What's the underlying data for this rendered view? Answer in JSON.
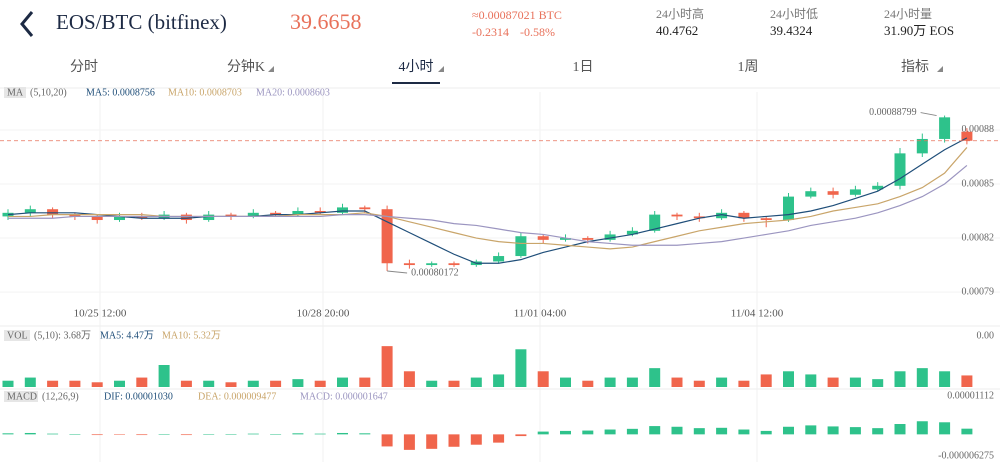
{
  "header": {
    "pair": "EOS/BTC (bitfinex)",
    "price": "39.6658",
    "btc_price": "≈0.00087021 BTC",
    "change": "-0.2314",
    "change_pct": "-0.58%",
    "stats": [
      {
        "label": "24小时高",
        "value": "40.4762"
      },
      {
        "label": "24小时低",
        "value": "39.4324"
      },
      {
        "label": "24小时量",
        "value": "31.90万 EOS"
      }
    ]
  },
  "tabs": [
    "分时",
    "分钟K",
    "4小时",
    "1日",
    "1周",
    "指标"
  ],
  "chart_data": {
    "type": "candlestick",
    "legend": {
      "name": "MA",
      "params": "(5,10,20)",
      "items": [
        "MA5: 0.0008756",
        "MA10: 0.0008703",
        "MA20: 0.0008603"
      ]
    },
    "x_labels": [
      "10/25 12:00",
      "10/28 20:00",
      "11/01 04:00",
      "11/04 12:00"
    ],
    "ylim": [
      0.0007856,
      0.0008994
    ],
    "yticks": [
      0.00088,
      0.00085,
      0.00082,
      0.00079
    ],
    "annotations": {
      "high": "0.00088799",
      "low": "0.00080172"
    },
    "up_color": "#2ec28b",
    "down_color": "#f0654c",
    "candles": {
      "open": [
        0.000832,
        0.000834,
        0.000836,
        0.000833,
        0.000832,
        0.00083,
        0.000832,
        0.000831,
        0.000833,
        0.00083,
        0.000833,
        0.000832,
        0.000834,
        0.000833,
        0.000835,
        0.000834,
        0.000837,
        0.000836,
        0.000806,
        0.000805,
        0.000806,
        0.000805,
        0.000807,
        0.00081,
        0.000821,
        0.000819,
        0.00082,
        0.000819,
        0.000822,
        0.000824,
        0.000833,
        0.000832,
        0.000831,
        0.000834,
        0.000831,
        0.00083,
        0.000843,
        0.000846,
        0.000844,
        0.000847,
        0.000849,
        0.000867,
        0.000875,
        0.000879
      ],
      "high": [
        0.000836,
        0.000838,
        0.000837,
        0.000834,
        0.000833,
        0.000834,
        0.000834,
        0.000835,
        0.000834,
        0.000835,
        0.000834,
        0.000836,
        0.000835,
        0.000837,
        0.000837,
        0.000839,
        0.000838,
        0.000838,
        0.000808,
        0.000807,
        0.000807,
        0.000808,
        0.000812,
        0.000823,
        0.000822,
        0.000822,
        0.000821,
        0.000824,
        0.000826,
        0.000835,
        0.000834,
        0.000834,
        0.000836,
        0.000835,
        0.000832,
        0.000845,
        0.000848,
        0.000848,
        0.000849,
        0.000851,
        0.00087,
        0.000878,
        0.00088799,
        0.000881
      ],
      "low": [
        0.00083,
        0.000832,
        0.000831,
        0.00083,
        0.000828,
        0.000829,
        0.00083,
        0.00083,
        0.000828,
        0.000829,
        0.00083,
        0.000831,
        0.000832,
        0.000832,
        0.000833,
        0.000833,
        0.000834,
        0.00080172,
        0.000803,
        0.000804,
        0.000804,
        0.000804,
        0.000806,
        0.000809,
        0.000817,
        0.000818,
        0.000817,
        0.000818,
        0.000821,
        0.000823,
        0.00083,
        0.000829,
        0.00083,
        0.000829,
        0.000826,
        0.000829,
        0.000842,
        0.000842,
        0.000843,
        0.000846,
        0.000847,
        0.000865,
        0.000873,
        0.000872
      ],
      "close": [
        0.000834,
        0.000836,
        0.000833,
        0.000832,
        0.00083,
        0.000832,
        0.000831,
        0.000833,
        0.00083,
        0.000833,
        0.000832,
        0.000834,
        0.000833,
        0.000835,
        0.000834,
        0.000837,
        0.000836,
        0.000806,
        0.000805,
        0.000806,
        0.000805,
        0.000807,
        0.00081,
        0.000821,
        0.000819,
        0.00082,
        0.000819,
        0.000822,
        0.000824,
        0.000833,
        0.000832,
        0.000831,
        0.000834,
        0.000831,
        0.00083,
        0.000843,
        0.000846,
        0.000844,
        0.000847,
        0.000849,
        0.000867,
        0.000875,
        0.000887,
        0.000874
      ]
    },
    "ma_series": [
      {
        "color": "#1f4e79",
        "values": [
          0.000833,
          0.000834,
          0.000834,
          0.000834,
          0.000833,
          0.000832,
          0.000831,
          0.000831,
          0.000831,
          0.000832,
          0.000832,
          0.000832,
          0.000833,
          0.000833,
          0.000834,
          0.000835,
          0.000835,
          0.000829,
          0.000823,
          0.000817,
          0.000811,
          0.000806,
          0.000806,
          0.000808,
          0.000812,
          0.000815,
          0.000818,
          0.00082,
          0.000822,
          0.000825,
          0.000828,
          0.000831,
          0.000833,
          0.000831,
          0.000832,
          0.000833,
          0.000835,
          0.000838,
          0.000842,
          0.000846,
          0.000853,
          0.000861,
          0.000869,
          0.0008756
        ]
      },
      {
        "color": "#c9a56a",
        "values": [
          0.000832,
          0.000832,
          0.000833,
          0.000833,
          0.000833,
          0.000833,
          0.000833,
          0.000832,
          0.000832,
          0.000832,
          0.000832,
          0.000832,
          0.000832,
          0.000833,
          0.000833,
          0.000833,
          0.000834,
          0.000832,
          0.000829,
          0.000826,
          0.000823,
          0.00082,
          0.000818,
          0.000817,
          0.000817,
          0.000816,
          0.000815,
          0.000814,
          0.000815,
          0.000818,
          0.000821,
          0.000824,
          0.000826,
          0.000828,
          0.000829,
          0.00083,
          0.000832,
          0.000835,
          0.000837,
          0.000839,
          0.000843,
          0.000848,
          0.000856,
          0.0008703
        ]
      },
      {
        "color": "#9b95c0",
        "values": [
          0.000831,
          0.000831,
          0.000831,
          0.000832,
          0.000832,
          0.000832,
          0.000832,
          0.000832,
          0.000832,
          0.000832,
          0.000832,
          0.000832,
          0.000832,
          0.000832,
          0.000832,
          0.000833,
          0.000833,
          0.000832,
          0.000831,
          0.00083,
          0.000828,
          0.000827,
          0.000825,
          0.000823,
          0.000822,
          0.00082,
          0.000818,
          0.000817,
          0.000816,
          0.000816,
          0.000816,
          0.000817,
          0.000818,
          0.00082,
          0.000822,
          0.000824,
          0.000827,
          0.000829,
          0.000831,
          0.000834,
          0.000838,
          0.000843,
          0.00085,
          0.0008603
        ]
      }
    ],
    "volume": {
      "name": "VOL",
      "params": "(5,10): 3.68万",
      "items": [
        "MA5: 4.47万",
        "MA10: 5.32万"
      ],
      "axis_label": "0.00",
      "ylim": [
        0,
        14
      ],
      "values": [
        2,
        3,
        2,
        2,
        1.5,
        2,
        3,
        7,
        2,
        2,
        1.5,
        2,
        2,
        2.5,
        2,
        3,
        3,
        13,
        5,
        2,
        2,
        3,
        4,
        12,
        5,
        3,
        2,
        3,
        3,
        6,
        3,
        2,
        3,
        2,
        4,
        5,
        4,
        3,
        3,
        2.5,
        5,
        6,
        5,
        3.68
      ]
    },
    "macd": {
      "name": "MACD",
      "params": "(12,26,9)",
      "items": [
        "DIF: 0.00001030",
        "DEA: 0.000009477",
        "MACD: 0.000001647"
      ],
      "ylim": [
        -6.275e-06,
        1.112e-05
      ],
      "yticks": [
        1.112e-05,
        -6.275e-06
      ],
      "values": [
        3e-07,
        4e-07,
        2e-07,
        1e-07,
        -2e-07,
        -1e-07,
        -2e-07,
        1e-07,
        -2e-07,
        1e-07,
        0,
        2e-07,
        1e-07,
        3e-07,
        2e-07,
        4e-07,
        3e-07,
        -3.5e-06,
        -4.5e-06,
        -4.2e-06,
        -3.6e-06,
        -3e-06,
        -2.4e-06,
        -5e-07,
        8e-07,
        1e-06,
        1.1e-06,
        1.4e-06,
        1.6e-06,
        2.4e-06,
        2.2e-06,
        1.8e-06,
        1.9e-06,
        1.4e-06,
        1e-06,
        2.2e-06,
        2.6e-06,
        2.3e-06,
        2.1e-06,
        1.8e-06,
        3e-06,
        3.8e-06,
        3.5e-06,
        1.647e-06
      ]
    }
  }
}
